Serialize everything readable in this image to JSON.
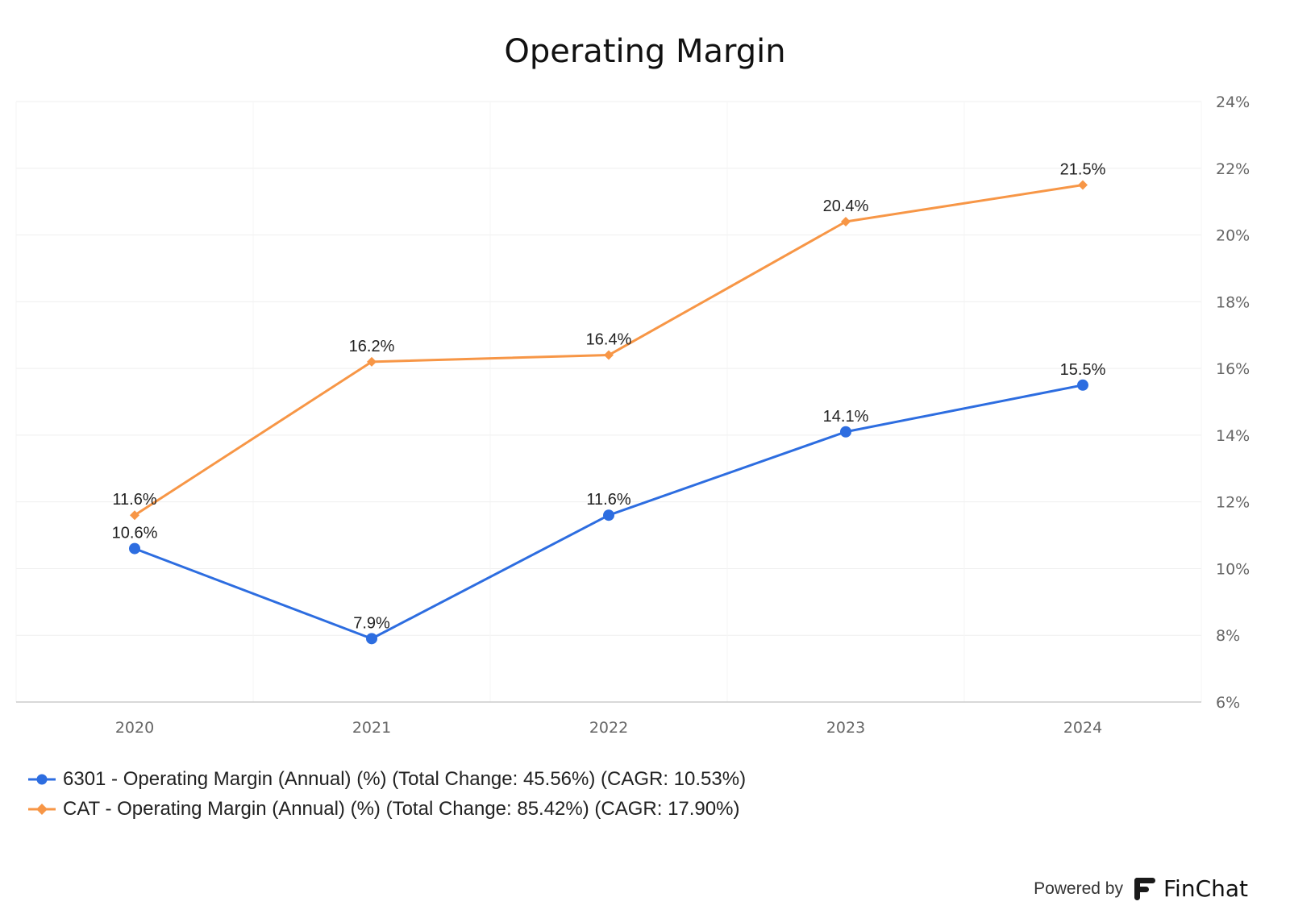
{
  "chart_data": {
    "type": "line",
    "title": "Operating Margin",
    "categories": [
      "2020",
      "2021",
      "2022",
      "2023",
      "2024"
    ],
    "ylim": [
      6,
      24
    ],
    "yticks": [
      6,
      8,
      10,
      12,
      14,
      16,
      18,
      20,
      22,
      24
    ],
    "ytick_suffix": "%",
    "y_axis_position": "right",
    "grid": true,
    "legend_position": "bottom-left",
    "series": [
      {
        "name": "6301 - Operating Margin (Annual) (%) (Total Change: 45.56%) (CAGR: 10.53%)",
        "values": [
          10.6,
          7.9,
          11.6,
          14.1,
          15.5
        ],
        "labels": [
          "10.6%",
          "7.9%",
          "11.6%",
          "14.1%",
          "15.5%"
        ],
        "color": "#2d6de0",
        "marker": "circle"
      },
      {
        "name": "CAT - Operating Margin (Annual) (%) (Total Change: 85.42%) (CAGR: 17.90%)",
        "values": [
          11.6,
          16.2,
          16.4,
          20.4,
          21.5
        ],
        "labels": [
          "11.6%",
          "16.2%",
          "16.4%",
          "20.4%",
          "21.5%"
        ],
        "color": "#f79646",
        "marker": "diamond"
      }
    ]
  },
  "footer": {
    "powered_by": "Powered by",
    "brand": "FinChat"
  }
}
